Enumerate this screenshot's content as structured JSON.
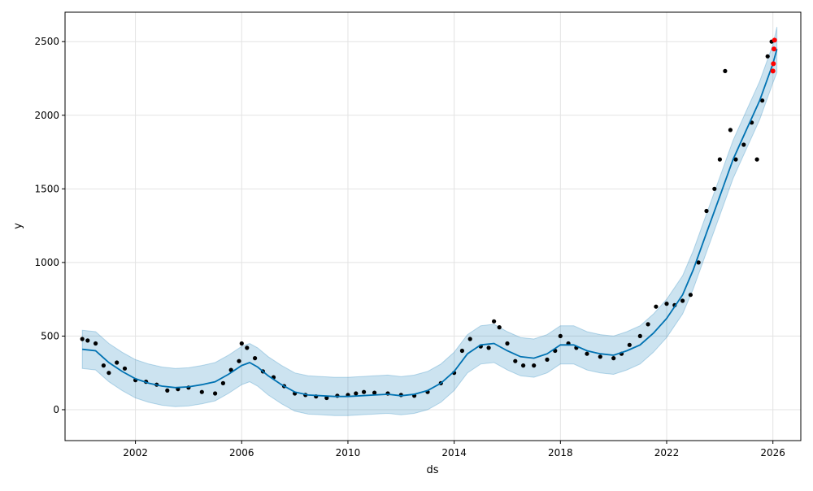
{
  "chart_data": {
    "type": "line",
    "title": "",
    "xlabel": "ds",
    "ylabel": "y",
    "xlim": [
      1999.35,
      2027.05
    ],
    "ylim": [
      -210,
      2700
    ],
    "grid": true,
    "x_ticks": [
      {
        "value": 2002,
        "label": "2002"
      },
      {
        "value": 2006,
        "label": "2006"
      },
      {
        "value": 2010,
        "label": "2010"
      },
      {
        "value": 2014,
        "label": "2014"
      },
      {
        "value": 2018,
        "label": "2018"
      },
      {
        "value": 2022,
        "label": "2022"
      },
      {
        "value": 2026,
        "label": "2026"
      }
    ],
    "y_ticks": [
      {
        "value": 0,
        "label": "0"
      },
      {
        "value": 500,
        "label": "500"
      },
      {
        "value": 1000,
        "label": "1000"
      },
      {
        "value": 1500,
        "label": "1500"
      },
      {
        "value": 2000,
        "label": "2000"
      },
      {
        "value": 2500,
        "label": "2500"
      }
    ],
    "colors": {
      "forecast_line": "#0072B2",
      "interval_fill": "#0072B2",
      "actual_points": "#000000",
      "recent_points": "#ff0000"
    },
    "series": [
      {
        "role": "forecast",
        "x": [
          2000.0,
          2000.5,
          2001.0,
          2001.5,
          2002.0,
          2002.5,
          2003.0,
          2003.5,
          2004.0,
          2004.5,
          2005.0,
          2005.5,
          2006.0,
          2006.3,
          2006.6,
          2007.0,
          2007.5,
          2008.0,
          2008.5,
          2009.0,
          2009.5,
          2010.0,
          2010.5,
          2011.0,
          2011.5,
          2012.0,
          2012.5,
          2013.0,
          2013.5,
          2014.0,
          2014.5,
          2015.0,
          2015.5,
          2016.0,
          2016.5,
          2017.0,
          2017.5,
          2018.0,
          2018.5,
          2019.0,
          2019.5,
          2020.0,
          2020.5,
          2021.0,
          2021.5,
          2022.0,
          2022.3,
          2022.6,
          2023.0,
          2023.5,
          2024.0,
          2024.5,
          2025.0,
          2025.5,
          2026.0,
          2026.15
        ],
        "y": [
          410,
          400,
          320,
          260,
          210,
          180,
          160,
          150,
          155,
          170,
          190,
          240,
          300,
          320,
          290,
          230,
          170,
          120,
          100,
          95,
          90,
          90,
          95,
          100,
          105,
          95,
          105,
          130,
          180,
          260,
          380,
          440,
          450,
          400,
          360,
          350,
          380,
          440,
          440,
          400,
          380,
          370,
          400,
          440,
          520,
          620,
          700,
          780,
          950,
          1200,
          1450,
          1700,
          1900,
          2100,
          2350,
          2450
        ],
        "lower": [
          280,
          270,
          190,
          130,
          80,
          50,
          30,
          20,
          25,
          40,
          60,
          110,
          170,
          190,
          160,
          100,
          40,
          -10,
          -30,
          -35,
          -40,
          -40,
          -35,
          -30,
          -25,
          -35,
          -25,
          0,
          50,
          130,
          250,
          310,
          320,
          270,
          230,
          220,
          250,
          310,
          310,
          270,
          250,
          240,
          270,
          310,
          390,
          490,
          570,
          650,
          820,
          1070,
          1320,
          1570,
          1770,
          1970,
          2220,
          2290
        ],
        "upper": [
          540,
          530,
          450,
          390,
          340,
          310,
          290,
          280,
          285,
          300,
          320,
          370,
          430,
          450,
          420,
          360,
          300,
          250,
          230,
          225,
          220,
          220,
          225,
          230,
          235,
          225,
          235,
          260,
          310,
          390,
          510,
          570,
          580,
          530,
          490,
          480,
          510,
          570,
          570,
          530,
          510,
          500,
          530,
          570,
          650,
          750,
          830,
          910,
          1080,
          1330,
          1580,
          1830,
          2030,
          2230,
          2480,
          2600
        ]
      },
      {
        "role": "actual",
        "x": [
          2000.0,
          2000.2,
          2000.5,
          2000.8,
          2001.0,
          2001.3,
          2001.6,
          2002.0,
          2002.4,
          2002.8,
          2003.2,
          2003.6,
          2004.0,
          2004.5,
          2005.0,
          2005.3,
          2005.6,
          2005.9,
          2006.0,
          2006.2,
          2006.5,
          2006.8,
          2007.2,
          2007.6,
          2008.0,
          2008.4,
          2008.8,
          2009.2,
          2009.6,
          2010.0,
          2010.3,
          2010.6,
          2011.0,
          2011.5,
          2012.0,
          2012.5,
          2013.0,
          2013.5,
          2014.0,
          2014.3,
          2014.6,
          2015.0,
          2015.3,
          2015.5,
          2015.7,
          2016.0,
          2016.3,
          2016.6,
          2017.0,
          2017.5,
          2017.8,
          2018.0,
          2018.3,
          2018.6,
          2019.0,
          2019.5,
          2020.0,
          2020.3,
          2020.6,
          2021.0,
          2021.3,
          2021.6,
          2022.0,
          2022.3,
          2022.6,
          2022.9,
          2023.2,
          2023.5,
          2023.8,
          2024.0,
          2024.2,
          2024.4,
          2024.6,
          2024.9,
          2025.2,
          2025.4,
          2025.6,
          2025.8,
          2025.95
        ],
        "y": [
          480,
          470,
          450,
          300,
          250,
          320,
          280,
          200,
          190,
          170,
          130,
          140,
          150,
          120,
          110,
          180,
          270,
          330,
          450,
          420,
          350,
          260,
          220,
          160,
          110,
          100,
          90,
          80,
          95,
          100,
          110,
          120,
          115,
          110,
          100,
          95,
          120,
          180,
          250,
          400,
          480,
          430,
          420,
          600,
          560,
          450,
          330,
          300,
          300,
          340,
          400,
          500,
          450,
          420,
          380,
          360,
          350,
          380,
          440,
          500,
          580,
          700,
          720,
          710,
          740,
          780,
          1000,
          1350,
          1500,
          1700,
          2300,
          1900,
          1700,
          1800,
          1950,
          1700,
          2100,
          2400,
          2500
        ]
      },
      {
        "role": "recent",
        "x": [
          2026.0,
          2026.02,
          2026.04,
          2026.06
        ],
        "y": [
          2300,
          2350,
          2450,
          2510
        ]
      }
    ]
  }
}
